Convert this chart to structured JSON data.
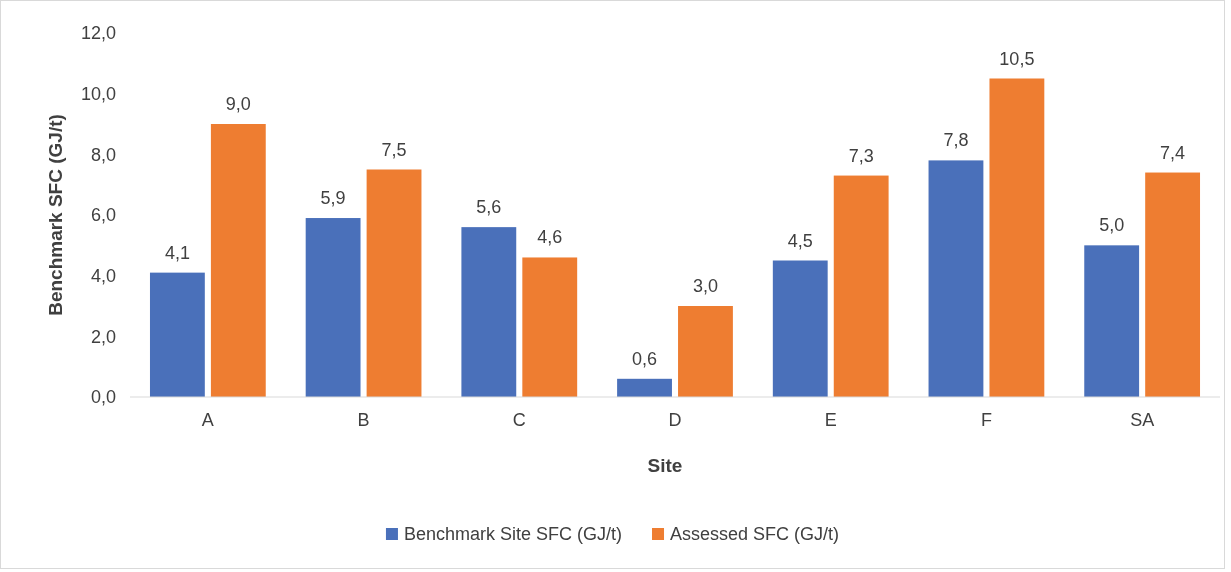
{
  "chart_data": {
    "type": "bar",
    "xlabel": "Site",
    "ylabel": "Benchmark SFC (GJ/t)",
    "categories": [
      "A",
      "B",
      "C",
      "D",
      "E",
      "F",
      "SA"
    ],
    "series": [
      {
        "name": "Benchmark Site SFC (GJ/t)",
        "color": "#4a70ba",
        "values": [
          4.1,
          5.9,
          5.6,
          0.6,
          4.5,
          7.8,
          5.0
        ],
        "value_labels": [
          "4,1",
          "5,9",
          "5,6",
          "0,6",
          "4,5",
          "7,8",
          "5,0"
        ]
      },
      {
        "name": "Assessed SFC (GJ/t)",
        "color": "#ee7d31",
        "values": [
          9.0,
          7.5,
          4.6,
          3.0,
          7.3,
          10.5,
          7.4
        ],
        "value_labels": [
          "9,0",
          "7,5",
          "4,6",
          "3,0",
          "7,3",
          "10,5",
          "7,4"
        ]
      }
    ],
    "ylim": [
      0,
      12
    ],
    "yticks": [
      {
        "value": 0,
        "label": "0,0"
      },
      {
        "value": 2,
        "label": "2,0"
      },
      {
        "value": 4,
        "label": "4,0"
      },
      {
        "value": 6,
        "label": "6,0"
      },
      {
        "value": 8,
        "label": "8,0"
      },
      {
        "value": 10,
        "label": "10,0"
      },
      {
        "value": 12,
        "label": "12,0"
      }
    ],
    "legend": "bottom"
  }
}
